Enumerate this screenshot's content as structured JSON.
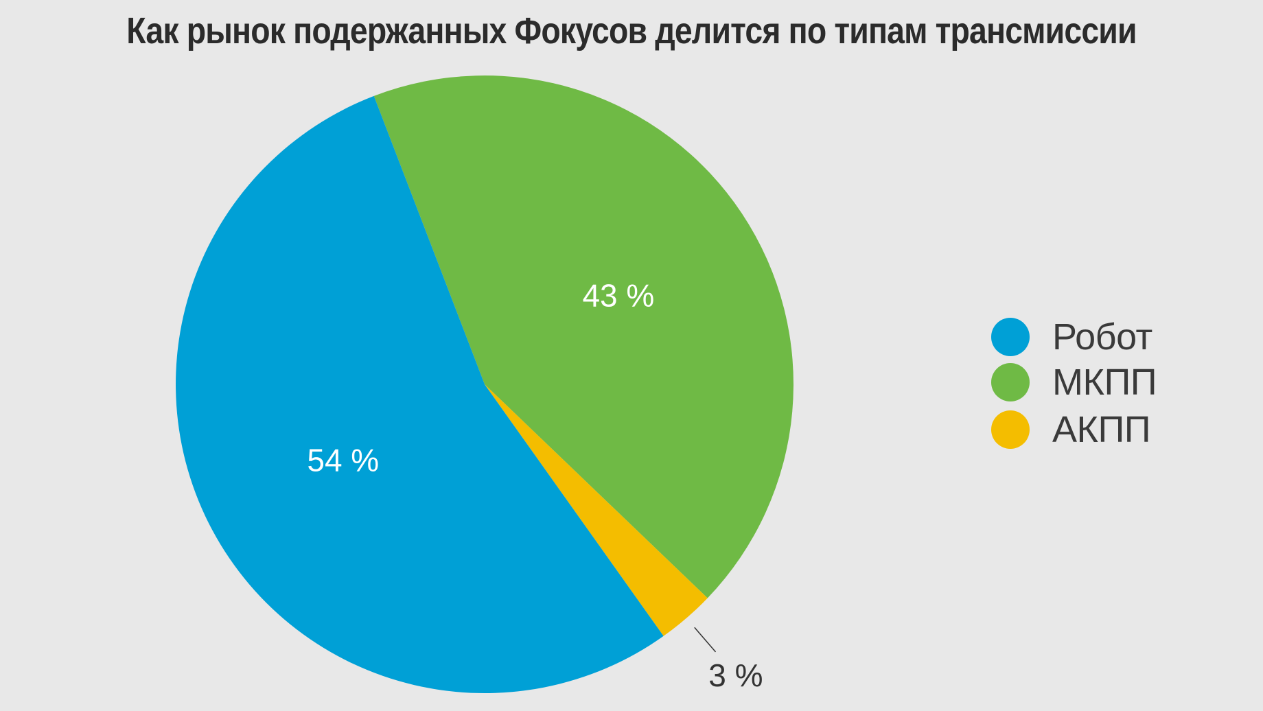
{
  "chart_data": {
    "type": "pie",
    "title": "Как рынок подержанных Фокусов делится по типам трансмиссии",
    "slices": [
      {
        "label": "Робот",
        "value": 54,
        "display": "54 %",
        "color": "#00a0d6"
      },
      {
        "label": "МКПП",
        "value": 43,
        "display": "43 %",
        "color": "#6fba45"
      },
      {
        "label": "АКПП",
        "value": 3,
        "display": "3 %",
        "color": "#f4bd00"
      }
    ],
    "legend_position": "right",
    "background": "#e8e8e8"
  }
}
